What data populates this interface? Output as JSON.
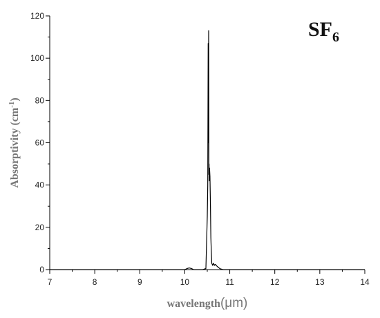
{
  "chart_data": {
    "type": "line",
    "title": "",
    "annotation": {
      "text": "SF",
      "subscript": "6"
    },
    "xlabel": {
      "main": "wavelength",
      "unit": "(μm)"
    },
    "ylabel": {
      "main": "Absorptivity (cm",
      "sup": "-1",
      "end": ")"
    },
    "xlim": [
      7,
      14
    ],
    "ylim": [
      0,
      120
    ],
    "xticks": [
      7,
      8,
      9,
      10,
      11,
      12,
      13,
      14
    ],
    "yticks": [
      0,
      20,
      40,
      60,
      80,
      100,
      120
    ],
    "grid": false,
    "legend": "none",
    "series": [
      {
        "color": "#000000",
        "x": [
          7.0,
          10.0,
          10.05,
          10.1,
          10.15,
          10.2,
          10.4,
          10.47,
          10.5,
          10.51,
          10.52,
          10.525,
          10.53,
          10.535,
          10.54,
          10.545,
          10.55,
          10.56,
          10.57,
          10.58,
          10.59,
          10.6,
          10.62,
          10.64,
          10.66,
          10.68,
          10.7,
          10.72,
          10.75,
          10.78,
          10.8,
          10.85,
          11.0,
          14.0
        ],
        "y": [
          0,
          0,
          0.5,
          0.8,
          0.5,
          0,
          0,
          0.5,
          25,
          40,
          107,
          60,
          113,
          45,
          50,
          42,
          48,
          44,
          30,
          15,
          8,
          3,
          2,
          3,
          2,
          2.5,
          2,
          1.5,
          1,
          0.5,
          0.3,
          0,
          0,
          0
        ]
      }
    ]
  }
}
